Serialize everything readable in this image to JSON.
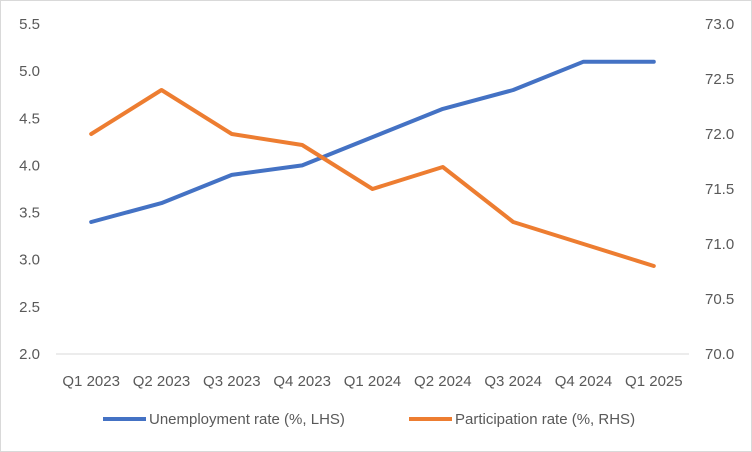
{
  "chart_data": {
    "type": "line",
    "title": "",
    "categories": [
      "Q1 2023",
      "Q2 2023",
      "Q3 2023",
      "Q4 2023",
      "Q1 2024",
      "Q2 2024",
      "Q3 2024",
      "Q4 2024",
      "Q1 2025"
    ],
    "series": [
      {
        "name": "Unemployment rate (%, LHS)",
        "axis": "left",
        "color": "#4472C4",
        "values": [
          3.4,
          3.6,
          3.9,
          4.0,
          4.3,
          4.6,
          4.8,
          5.1,
          5.1
        ]
      },
      {
        "name": "Participation rate (%, RHS)",
        "axis": "right",
        "color": "#ED7D31",
        "values": [
          72.0,
          72.4,
          72.0,
          71.9,
          71.5,
          71.7,
          71.2,
          71.0,
          70.8
        ]
      }
    ],
    "y_left": {
      "min": 2.0,
      "max": 5.5,
      "ticks": [
        "2.0",
        "2.5",
        "3.0",
        "3.5",
        "4.0",
        "4.5",
        "5.0",
        "5.5"
      ]
    },
    "y_right": {
      "min": 70.0,
      "max": 73.0,
      "ticks": [
        "70.0",
        "70.5",
        "71.0",
        "71.5",
        "72.0",
        "72.5",
        "73.0"
      ]
    },
    "grid": false,
    "legend_position": "bottom"
  }
}
